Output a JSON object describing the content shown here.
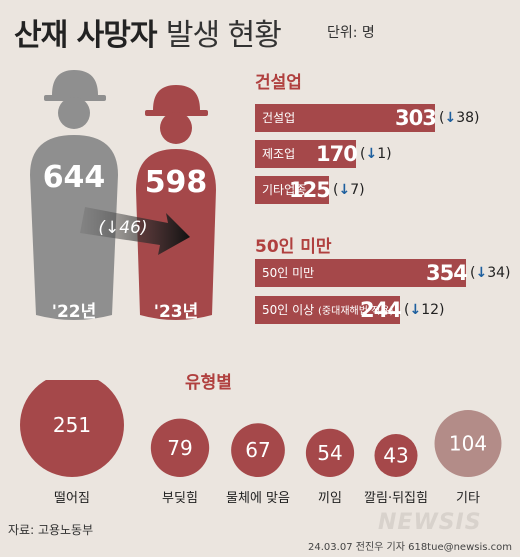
{
  "title": {
    "main": "산재 사망자",
    "sub": "발생 현황",
    "unit": "단위: 명"
  },
  "colors": {
    "accent": "#a5484a",
    "gray": "#8f8f8f",
    "bubble_light": "#b38c88",
    "arrow_blue": "#1d5f9e"
  },
  "chart_data": [
    {
      "type": "bar",
      "categories": [
        "'22년",
        "'23년"
      ],
      "values": [
        644,
        598
      ],
      "change": {
        "label": "↓46",
        "value": -46
      }
    },
    {
      "type": "bar",
      "title": "건설업",
      "categories": [
        "건설업",
        "제조업",
        "기타업종"
      ],
      "values": [
        303,
        170,
        125
      ],
      "changes": [
        -38,
        -1,
        -7
      ],
      "change_labels": [
        "↓38",
        "↓1",
        "↓7"
      ]
    },
    {
      "type": "bar",
      "title": "50인 미만",
      "categories": [
        "50인 미만",
        "50인 이상"
      ],
      "category_notes": [
        "",
        "(중대재해법 적용)"
      ],
      "values": [
        354,
        244
      ],
      "changes": [
        -34,
        -12
      ],
      "change_labels": [
        "↓34",
        "↓12"
      ]
    },
    {
      "type": "bubble",
      "title": "유형별",
      "categories": [
        "떨어짐",
        "부딪힘",
        "물체에 맞음",
        "끼임",
        "깔림·뒤집힘",
        "기타"
      ],
      "values": [
        251,
        79,
        67,
        54,
        43,
        104
      ]
    }
  ],
  "footer": {
    "source": "자료: 고용노동부",
    "credit": "24.03.07 전진우 기자 618tue@newsis.com",
    "watermark": "NEWSIS"
  }
}
